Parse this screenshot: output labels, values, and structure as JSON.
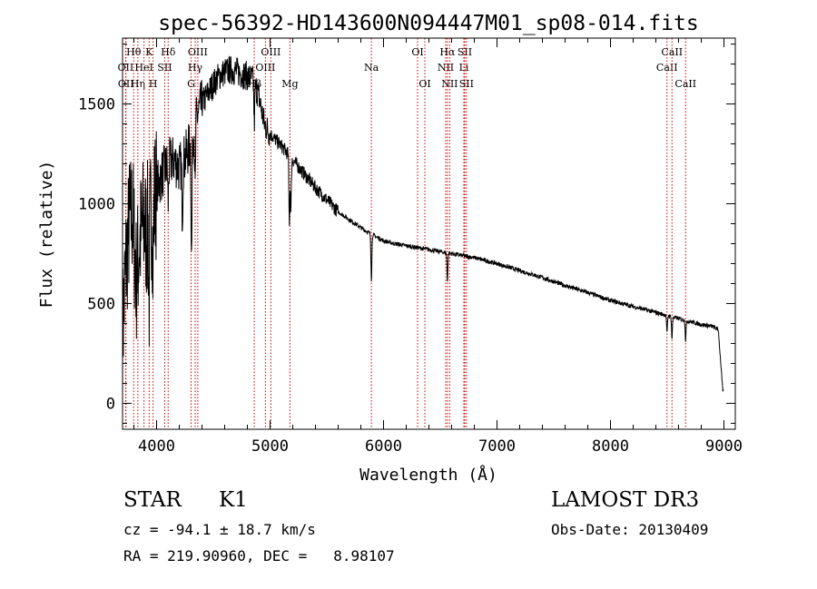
{
  "colors": {
    "spectrum": "#000000",
    "line_marker": "#cc0000",
    "axis": "#000000"
  },
  "chart_data": {
    "type": "line",
    "title": "spec-56392-HD143600N094447M01_sp08-014.fits",
    "xlabel": "Wavelength (Å)",
    "ylabel": "Flux (relative)",
    "xlim": [
      3700,
      9100
    ],
    "ylim": [
      -130,
      1830
    ],
    "xticks": [
      4000,
      5000,
      6000,
      7000,
      8000,
      9000
    ],
    "xtick_labels": [
      "4000",
      "5000",
      "6000",
      "7000",
      "8000",
      "9000"
    ],
    "yticks": [
      0,
      500,
      1000,
      1500
    ],
    "ytick_labels": [
      "0",
      "500",
      "1000",
      "1500"
    ],
    "series": [
      {
        "name": "flux",
        "x": [
          3700,
          3730,
          3760,
          3790,
          3820,
          3850,
          3880,
          3910,
          3940,
          3970,
          4000,
          4050,
          4100,
          4150,
          4200,
          4250,
          4300,
          4350,
          4400,
          4450,
          4500,
          4550,
          4600,
          4650,
          4700,
          4750,
          4800,
          4850,
          4900,
          4950,
          5000,
          5100,
          5200,
          5300,
          5400,
          5500,
          5600,
          5700,
          5800,
          5900,
          6000,
          6100,
          6200,
          6300,
          6400,
          6500,
          6600,
          6700,
          6800,
          6900,
          7000,
          7200,
          7400,
          7600,
          7800,
          8000,
          8200,
          8400,
          8500,
          8600,
          8700,
          8800,
          8900,
          8950,
          8990
        ],
        "y": [
          350,
          700,
          900,
          950,
          620,
          800,
          900,
          850,
          920,
          1000,
          1080,
          1150,
          1200,
          1220,
          1180,
          1230,
          1300,
          1430,
          1500,
          1550,
          1600,
          1640,
          1660,
          1670,
          1665,
          1650,
          1640,
          1620,
          1540,
          1400,
          1350,
          1290,
          1220,
          1150,
          1080,
          1020,
          960,
          920,
          880,
          845,
          815,
          800,
          790,
          780,
          770,
          760,
          750,
          740,
          730,
          715,
          700,
          665,
          630,
          590,
          555,
          515,
          485,
          455,
          440,
          425,
          410,
          395,
          385,
          370,
          60
        ],
        "absorption_dips": [
          {
            "x": 3934,
            "depth": 380
          },
          {
            "x": 3969,
            "depth": 300
          },
          {
            "x": 4102,
            "depth": 200
          },
          {
            "x": 4227,
            "depth": 250
          },
          {
            "x": 4308,
            "depth": 600
          },
          {
            "x": 4340,
            "depth": 350
          },
          {
            "x": 4861,
            "depth": 200
          },
          {
            "x": 5170,
            "depth": 330
          },
          {
            "x": 5183,
            "depth": 280
          },
          {
            "x": 5893,
            "depth": 230
          },
          {
            "x": 6563,
            "depth": 140
          },
          {
            "x": 8498,
            "depth": 90
          },
          {
            "x": 8542,
            "depth": 110
          },
          {
            "x": 8662,
            "depth": 100
          }
        ]
      }
    ],
    "line_markers": [
      {
        "x": 3727,
        "label": "OII",
        "row": 2
      },
      {
        "x": 3730,
        "label": "OII",
        "row": 3
      },
      {
        "x": 3798,
        "label": "Hθ",
        "row": 1
      },
      {
        "x": 3835,
        "label": "Hη",
        "row": 3
      },
      {
        "x": 3889,
        "label": "HeI",
        "row": 2
      },
      {
        "x": 3934,
        "label": "K",
        "row": 1
      },
      {
        "x": 3969,
        "label": "H",
        "row": 3
      },
      {
        "x": 4072,
        "label": "SII",
        "row": 2
      },
      {
        "x": 4102,
        "label": "Hδ",
        "row": 1
      },
      {
        "x": 4304,
        "label": "G",
        "row": 3
      },
      {
        "x": 4340,
        "label": "Hγ",
        "row": 2
      },
      {
        "x": 4363,
        "label": "OIII",
        "row": 1
      },
      {
        "x": 4861,
        "label": "Hβ",
        "row": 3
      },
      {
        "x": 4959,
        "label": "OIII",
        "row": 2
      },
      {
        "x": 5007,
        "label": "OIII",
        "row": 1
      },
      {
        "x": 5175,
        "label": "Mg",
        "row": 3
      },
      {
        "x": 5893,
        "label": "Na",
        "row": 2
      },
      {
        "x": 6300,
        "label": "OI",
        "row": 1
      },
      {
        "x": 6364,
        "label": "OI",
        "row": 3
      },
      {
        "x": 6548,
        "label": "NII",
        "row": 2
      },
      {
        "x": 6563,
        "label": "Hα",
        "row": 1
      },
      {
        "x": 6583,
        "label": "NII",
        "row": 3
      },
      {
        "x": 6708,
        "label": "Li",
        "row": 2
      },
      {
        "x": 6716,
        "label": "SII",
        "row": 1
      },
      {
        "x": 6731,
        "label": "SII",
        "row": 3
      },
      {
        "x": 8498,
        "label": "CaII",
        "row": 2
      },
      {
        "x": 8542,
        "label": "CaII",
        "row": 1
      },
      {
        "x": 8662,
        "label": "CaII",
        "row": 3
      }
    ]
  },
  "info": {
    "object_class": "STAR",
    "subclass": "K1",
    "survey": "LAMOST DR3",
    "redshift": "cz = -94.1 ± 18.7 km/s",
    "obs_date": "Obs-Date: 20130409",
    "coords": "RA = 219.90960, DEC =   8.98107"
  }
}
